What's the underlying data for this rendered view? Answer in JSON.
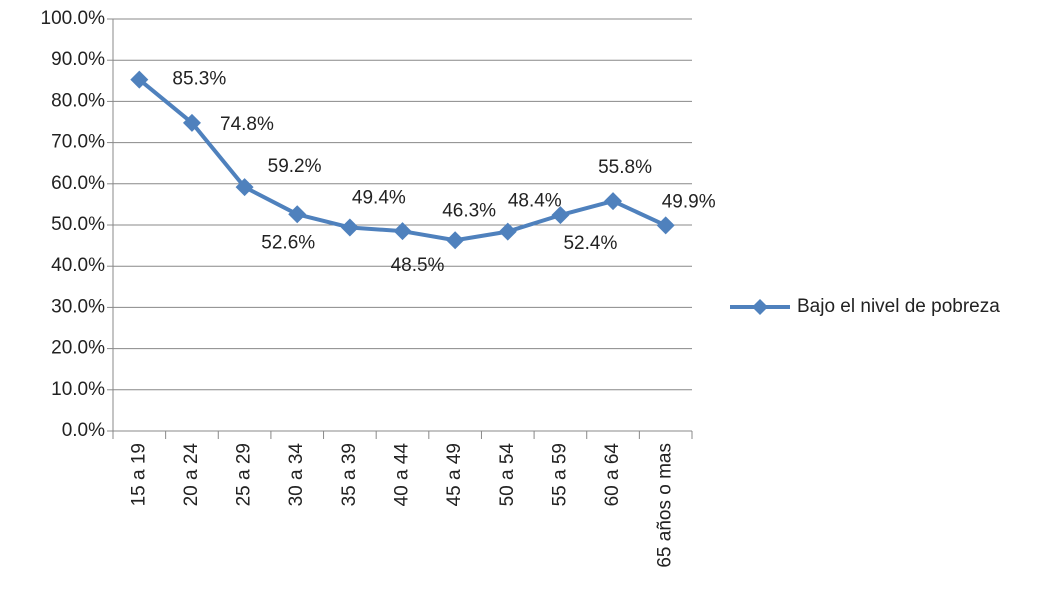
{
  "chart_data": {
    "type": "line",
    "categories": [
      "15 a 19",
      "20 a 24",
      "25 a 29",
      "30 a 34",
      "35 a 39",
      "40 a 44",
      "45 a 49",
      "50 a 54",
      "55 a 59",
      "60 a 64",
      "65 años o mas"
    ],
    "series": [
      {
        "name": "Bajo el nivel de pobreza",
        "color": "#4f81bd",
        "values": [
          85.3,
          74.8,
          59.2,
          52.6,
          49.4,
          48.5,
          46.3,
          48.4,
          52.4,
          55.8,
          49.9
        ],
        "value_labels": [
          "85.3%",
          "74.8%",
          "59.2%",
          "52.6%",
          "49.4%",
          "48.5%",
          "46.3%",
          "48.4%",
          "52.4%",
          "55.8%",
          "49.9%"
        ]
      }
    ],
    "ylim": [
      0,
      100
    ],
    "yticks": [
      {
        "value": 0,
        "label": "0.0%"
      },
      {
        "value": 10,
        "label": "10.0%"
      },
      {
        "value": 20,
        "label": "20.0%"
      },
      {
        "value": 30,
        "label": "30.0%"
      },
      {
        "value": 40,
        "label": "40.0%"
      },
      {
        "value": 50,
        "label": "50.0%"
      },
      {
        "value": 60,
        "label": "60.0%"
      },
      {
        "value": 70,
        "label": "70.0%"
      },
      {
        "value": 80,
        "label": "80.0%"
      },
      {
        "value": 90,
        "label": "90.0%"
      },
      {
        "value": 100,
        "label": "100.0%"
      }
    ],
    "grid": true,
    "legend": "right"
  }
}
